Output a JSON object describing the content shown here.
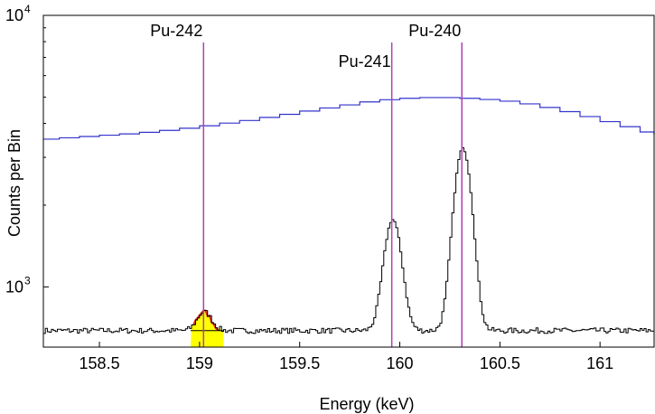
{
  "chart_data": {
    "type": "line",
    "title": "",
    "xlabel": "Energy (keV)",
    "ylabel": "Counts per Bin",
    "xlim": [
      158.22,
      161.27
    ],
    "ylim": [
      600,
      10000
    ],
    "y_scale": "log",
    "grid": false,
    "legend": "none",
    "x_ticks": [
      {
        "value": 158.5,
        "label": "158.5"
      },
      {
        "value": 159,
        "label": "159"
      },
      {
        "value": 159.5,
        "label": "159.5"
      },
      {
        "value": 160,
        "label": "160"
      },
      {
        "value": 160.5,
        "label": "160.5"
      },
      {
        "value": 161,
        "label": "161"
      }
    ],
    "y_ticks": [
      {
        "value": 1000,
        "base": "10",
        "exponent": "3"
      },
      {
        "value": 10000,
        "base": "10",
        "exponent": "4"
      }
    ],
    "series": [
      {
        "color": "#3333cc",
        "style": "step",
        "x": [
          158.22,
          158.3,
          158.4,
          158.5,
          158.6,
          158.7,
          158.8,
          158.9,
          159.0,
          159.1,
          159.2,
          159.3,
          159.4,
          159.5,
          159.6,
          159.7,
          159.8,
          159.9,
          160.0,
          160.1,
          160.2,
          160.3,
          160.4,
          160.5,
          160.6,
          160.7,
          160.8,
          160.9,
          161.0,
          161.1,
          161.2,
          161.27
        ],
        "y": [
          3500,
          3540,
          3580,
          3620,
          3660,
          3710,
          3770,
          3840,
          3920,
          4010,
          4100,
          4210,
          4320,
          4440,
          4560,
          4680,
          4800,
          4890,
          4950,
          4980,
          4980,
          4950,
          4900,
          4830,
          4720,
          4580,
          4420,
          4240,
          4060,
          3890,
          3720,
          3640
        ]
      },
      {
        "color": "#000000",
        "style": "line",
        "baseline": 690,
        "noise_amplitude": 16,
        "peaks": [
          {
            "center": 159.02,
            "height": 120,
            "sigma": 0.035
          },
          {
            "center": 159.96,
            "height": 1080,
            "sigma": 0.04
          },
          {
            "center": 160.31,
            "height": 2550,
            "sigma": 0.04
          }
        ]
      }
    ],
    "shaded_region": {
      "x_start": 158.955,
      "x_end": 159.12,
      "color": "#ffff00"
    },
    "peak_markers": [
      {
        "label": "Pu-242",
        "x": 159.02,
        "color": "#b040b0"
      },
      {
        "label": "Pu-241",
        "x": 159.96,
        "color": "#b040b0"
      },
      {
        "label": "Pu-240",
        "x": 160.31,
        "color": "#b040b0"
      }
    ]
  }
}
